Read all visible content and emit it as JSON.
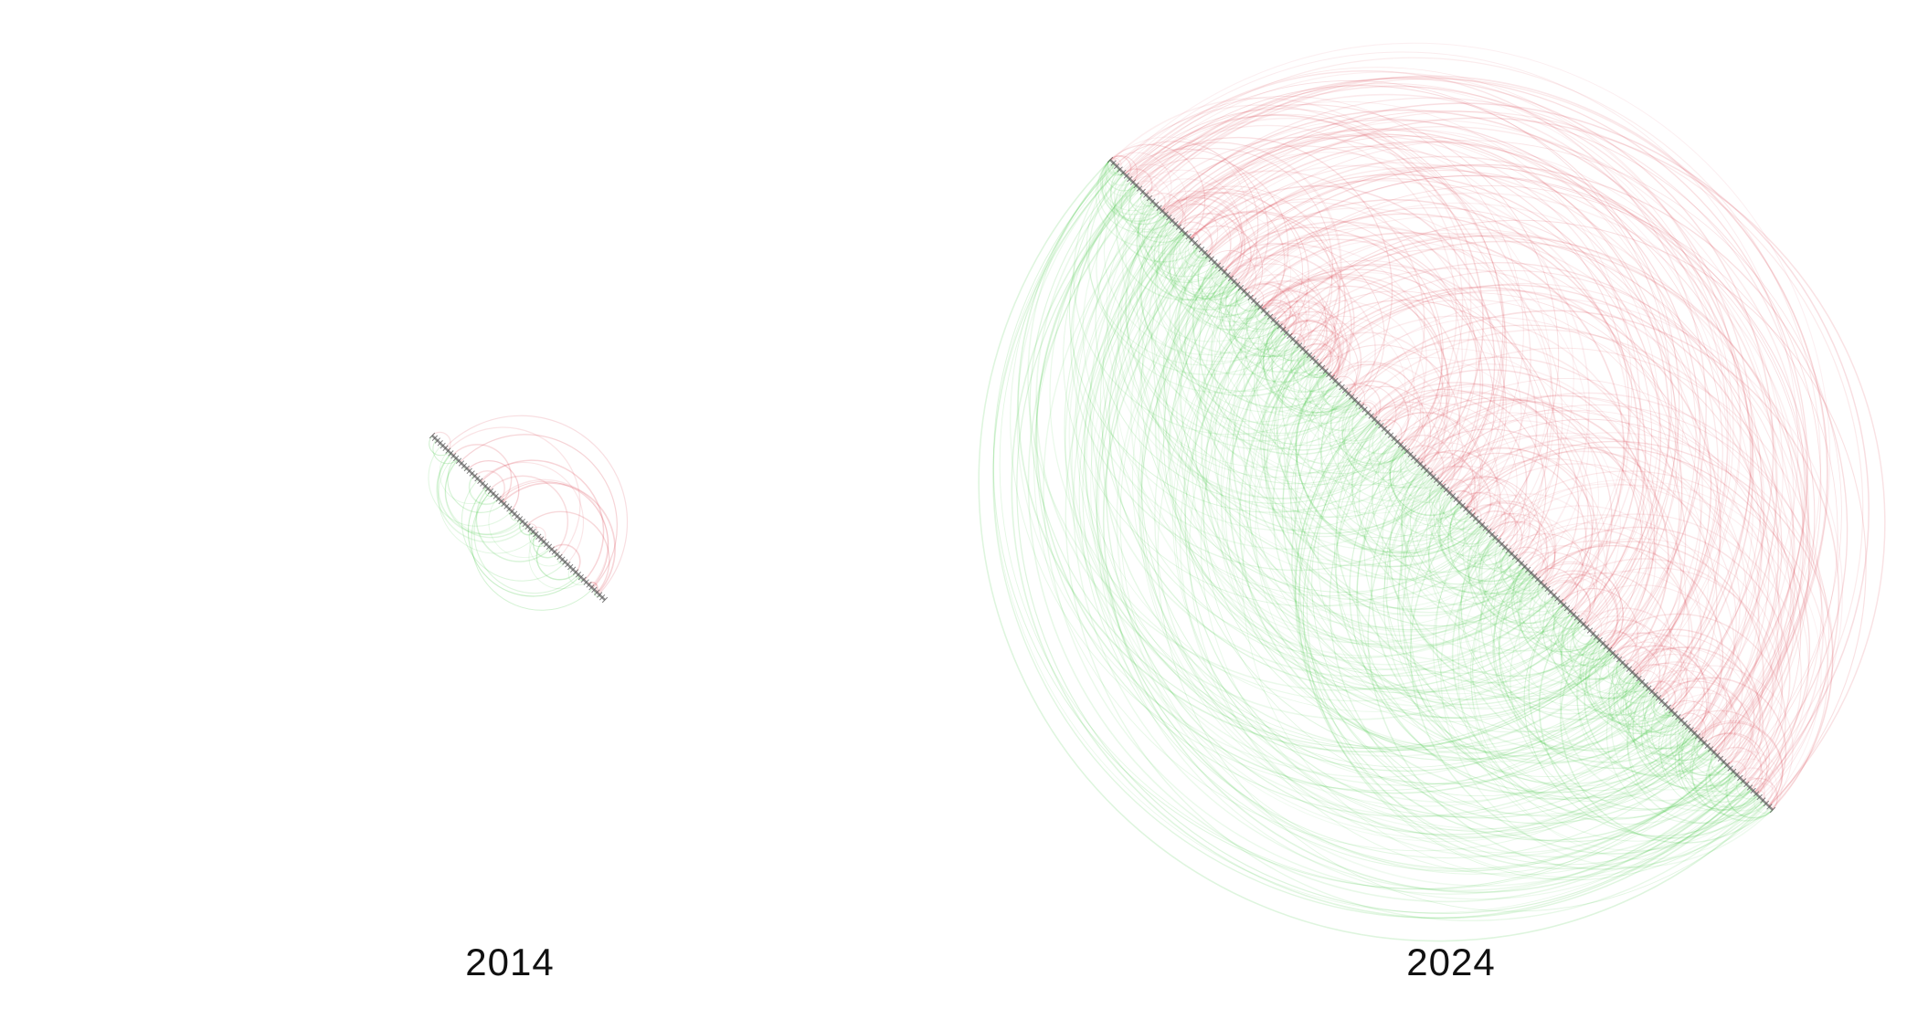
{
  "chart_data": {
    "type": "arc-diagram",
    "title": "",
    "colors": {
      "upper_arcs": "#d9424f",
      "lower_arcs": "#3cc43c",
      "axis_ticks": "#555555",
      "label": "#111111"
    },
    "panels": [
      {
        "label": "2014",
        "relative_span": 0.265,
        "arc_count_upper": 24,
        "arc_count_lower": 34
      },
      {
        "label": "2024",
        "relative_span": 1.0,
        "arc_count_upper": 420,
        "arc_count_lower": 560
      }
    ]
  }
}
